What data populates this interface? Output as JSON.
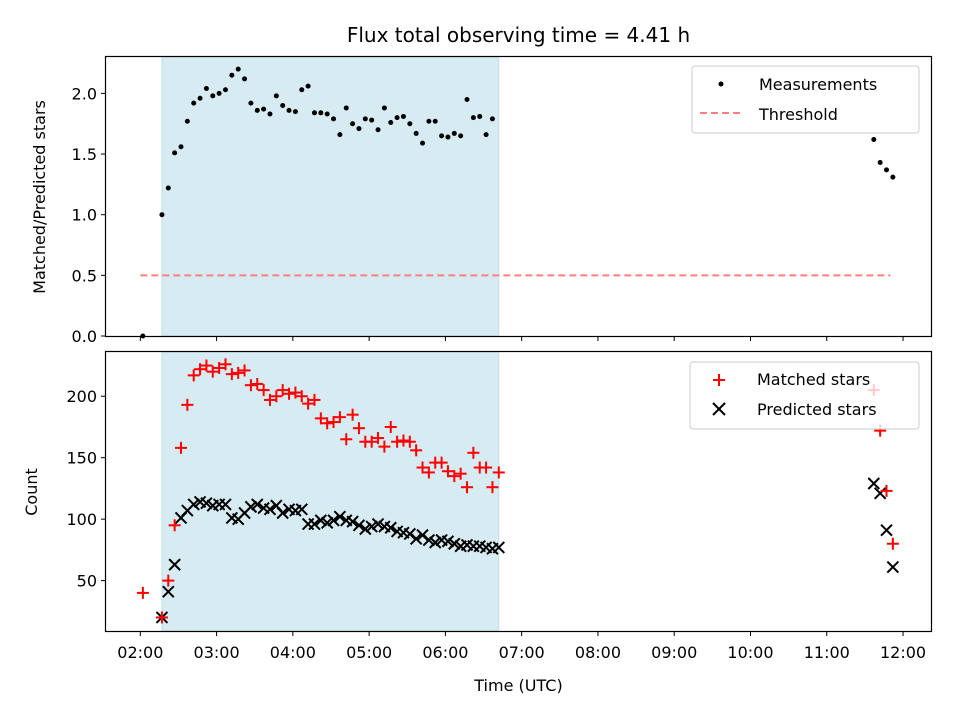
{
  "chart_data": {
    "title": "Flux total observing time = 4.41 h",
    "xlabel": "Time (UTC)",
    "x_ticks": [
      "02:00",
      "03:00",
      "04:00",
      "05:00",
      "06:00",
      "07:00",
      "08:00",
      "09:00",
      "10:00",
      "11:00",
      "12:00"
    ],
    "xlim": [
      "01:33",
      "12:22"
    ],
    "observing_window": [
      "02:17",
      "06:42"
    ],
    "colors": {
      "window": "#add8e6",
      "measurement": "#000000",
      "threshold": "#ff7f7f",
      "matched": "#ff0000",
      "predicted": "#000000"
    },
    "top": {
      "type": "scatter",
      "ylabel": "Matched/Predicted stars",
      "ylim": [
        0,
        2.3
      ],
      "y_ticks": [
        "0.0",
        "0.5",
        "1.0",
        "1.5",
        "2.0"
      ],
      "legend": [
        "Measurements",
        "Threshold"
      ],
      "legend_position": "top-right",
      "threshold": {
        "value": 0.5,
        "x_range": [
          "02:00",
          "11:50"
        ]
      },
      "series": [
        {
          "name": "Measurements",
          "points": [
            [
              "02:02",
              0.0
            ],
            [
              "02:17",
              1.0
            ],
            [
              "02:22",
              1.22
            ],
            [
              "02:27",
              1.51
            ],
            [
              "02:32",
              1.56
            ],
            [
              "02:37",
              1.77
            ],
            [
              "02:42",
              1.92
            ],
            [
              "02:47",
              1.96
            ],
            [
              "02:52",
              2.04
            ],
            [
              "02:57",
              1.98
            ],
            [
              "03:02",
              2.0
            ],
            [
              "03:07",
              2.03
            ],
            [
              "03:12",
              2.15
            ],
            [
              "03:17",
              2.2
            ],
            [
              "03:22",
              2.12
            ],
            [
              "03:27",
              1.92
            ],
            [
              "03:32",
              1.86
            ],
            [
              "03:37",
              1.87
            ],
            [
              "03:42",
              1.83
            ],
            [
              "03:47",
              1.98
            ],
            [
              "03:52",
              1.9
            ],
            [
              "03:57",
              1.86
            ],
            [
              "04:02",
              1.85
            ],
            [
              "04:07",
              2.03
            ],
            [
              "04:12",
              2.06
            ],
            [
              "04:17",
              1.84
            ],
            [
              "04:22",
              1.84
            ],
            [
              "04:27",
              1.83
            ],
            [
              "04:32",
              1.79
            ],
            [
              "04:37",
              1.66
            ],
            [
              "04:42",
              1.88
            ],
            [
              "04:47",
              1.75
            ],
            [
              "04:52",
              1.71
            ],
            [
              "04:57",
              1.79
            ],
            [
              "05:02",
              1.78
            ],
            [
              "05:07",
              1.7
            ],
            [
              "05:12",
              1.88
            ],
            [
              "05:17",
              1.76
            ],
            [
              "05:22",
              1.8
            ],
            [
              "05:27",
              1.81
            ],
            [
              "05:32",
              1.75
            ],
            [
              "05:37",
              1.67
            ],
            [
              "05:42",
              1.59
            ],
            [
              "05:47",
              1.77
            ],
            [
              "05:52",
              1.77
            ],
            [
              "05:57",
              1.65
            ],
            [
              "06:02",
              1.64
            ],
            [
              "06:07",
              1.67
            ],
            [
              "06:12",
              1.65
            ],
            [
              "06:17",
              1.95
            ],
            [
              "06:22",
              1.8
            ],
            [
              "06:27",
              1.81
            ],
            [
              "06:32",
              1.66
            ],
            [
              "06:37",
              1.79
            ],
            [
              "11:37",
              1.62
            ],
            [
              "11:42",
              1.43
            ],
            [
              "11:47",
              1.37
            ],
            [
              "11:52",
              1.31
            ]
          ]
        }
      ]
    },
    "bottom": {
      "type": "scatter",
      "ylabel": "Count",
      "ylim": [
        9,
        236
      ],
      "y_ticks": [
        "50",
        "100",
        "150",
        "200"
      ],
      "legend": [
        "Matched stars",
        "Predicted stars"
      ],
      "legend_position": "top-right",
      "series": [
        {
          "name": "Matched stars",
          "marker": "+",
          "points": [
            [
              "02:02",
              40
            ],
            [
              "02:17",
              20
            ],
            [
              "02:22",
              50
            ],
            [
              "02:27",
              95
            ],
            [
              "02:32",
              158
            ],
            [
              "02:37",
              193
            ],
            [
              "02:42",
              217
            ],
            [
              "02:47",
              222
            ],
            [
              "02:52",
              225
            ],
            [
              "02:57",
              220
            ],
            [
              "03:02",
              223
            ],
            [
              "03:07",
              226
            ],
            [
              "03:12",
              218
            ],
            [
              "03:17",
              219
            ],
            [
              "03:22",
              221
            ],
            [
              "03:27",
              209
            ],
            [
              "03:32",
              210
            ],
            [
              "03:37",
              205
            ],
            [
              "03:42",
              197
            ],
            [
              "03:47",
              200
            ],
            [
              "03:52",
              205
            ],
            [
              "03:57",
              202
            ],
            [
              "04:02",
              203
            ],
            [
              "04:07",
              200
            ],
            [
              "04:12",
              194
            ],
            [
              "04:17",
              197
            ],
            [
              "04:22",
              182
            ],
            [
              "04:27",
              178
            ],
            [
              "04:32",
              179
            ],
            [
              "04:37",
              183
            ],
            [
              "04:42",
              165
            ],
            [
              "04:47",
              185
            ],
            [
              "04:52",
              174
            ],
            [
              "04:57",
              163
            ],
            [
              "05:02",
              163
            ],
            [
              "05:07",
              166
            ],
            [
              "05:12",
              159
            ],
            [
              "05:17",
              175
            ],
            [
              "05:22",
              163
            ],
            [
              "05:27",
              164
            ],
            [
              "05:32",
              163
            ],
            [
              "05:37",
              156
            ],
            [
              "05:42",
              142
            ],
            [
              "05:47",
              138
            ],
            [
              "05:52",
              146
            ],
            [
              "05:57",
              146
            ],
            [
              "06:02",
              139
            ],
            [
              "06:07",
              135
            ],
            [
              "06:12",
              137
            ],
            [
              "06:17",
              126
            ],
            [
              "06:22",
              154
            ],
            [
              "06:27",
              142
            ],
            [
              "06:32",
              142
            ],
            [
              "06:37",
              126
            ],
            [
              "06:42",
              138
            ],
            [
              "11:37",
              205
            ],
            [
              "11:42",
              172
            ],
            [
              "11:47",
              123
            ],
            [
              "11:52",
              80
            ]
          ]
        },
        {
          "name": "Predicted stars",
          "marker": "x",
          "points": [
            [
              "02:17",
              20
            ],
            [
              "02:22",
              41
            ],
            [
              "02:27",
              63
            ],
            [
              "02:32",
              101
            ],
            [
              "02:37",
              107
            ],
            [
              "02:42",
              112
            ],
            [
              "02:47",
              114
            ],
            [
              "02:52",
              113
            ],
            [
              "02:57",
              111
            ],
            [
              "03:02",
              112
            ],
            [
              "03:07",
              112
            ],
            [
              "03:12",
              101
            ],
            [
              "03:17",
              100
            ],
            [
              "03:22",
              105
            ],
            [
              "03:27",
              110
            ],
            [
              "03:32",
              112
            ],
            [
              "03:37",
              109
            ],
            [
              "03:42",
              108
            ],
            [
              "03:47",
              111
            ],
            [
              "03:52",
              105
            ],
            [
              "03:57",
              108
            ],
            [
              "04:02",
              107
            ],
            [
              "04:07",
              108
            ],
            [
              "04:12",
              96
            ],
            [
              "04:17",
              96
            ],
            [
              "04:22",
              99
            ],
            [
              "04:27",
              97
            ],
            [
              "04:32",
              99
            ],
            [
              "04:37",
              102
            ],
            [
              "04:42",
              99
            ],
            [
              "04:47",
              98
            ],
            [
              "04:52",
              95
            ],
            [
              "04:57",
              92
            ],
            [
              "05:02",
              94
            ],
            [
              "05:07",
              96
            ],
            [
              "05:12",
              94
            ],
            [
              "05:17",
              93
            ],
            [
              "05:22",
              90
            ],
            [
              "05:27",
              89
            ],
            [
              "05:32",
              88
            ],
            [
              "05:37",
              84
            ],
            [
              "05:42",
              87
            ],
            [
              "05:47",
              83
            ],
            [
              "05:52",
              81
            ],
            [
              "05:57",
              83
            ],
            [
              "06:02",
              82
            ],
            [
              "06:07",
              80
            ],
            [
              "06:12",
              78
            ],
            [
              "06:17",
              79
            ],
            [
              "06:22",
              78
            ],
            [
              "06:27",
              78
            ],
            [
              "06:32",
              77
            ],
            [
              "06:37",
              76
            ],
            [
              "06:42",
              77
            ],
            [
              "11:37",
              129
            ],
            [
              "11:42",
              121
            ],
            [
              "11:47",
              91
            ],
            [
              "11:52",
              61
            ]
          ]
        }
      ]
    }
  }
}
